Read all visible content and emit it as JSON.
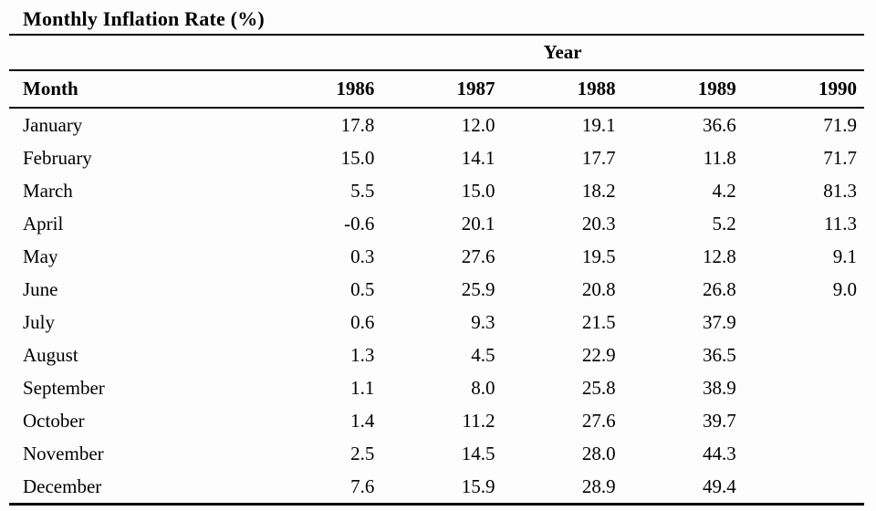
{
  "table": {
    "title": "Monthly Inflation Rate (%)",
    "group_header": "Year",
    "month_header": "Month",
    "years": [
      "1986",
      "1987",
      "1988",
      "1989",
      "1990"
    ],
    "rows": [
      {
        "month": "January",
        "values": [
          "17.8",
          "12.0",
          "19.1",
          "36.6",
          "71.9"
        ]
      },
      {
        "month": "February",
        "values": [
          "15.0",
          "14.1",
          "17.7",
          "11.8",
          "71.7"
        ]
      },
      {
        "month": "March",
        "values": [
          "5.5",
          "15.0",
          "18.2",
          "4.2",
          "81.3"
        ]
      },
      {
        "month": "April",
        "values": [
          "-0.6",
          "20.1",
          "20.3",
          "5.2",
          "11.3"
        ]
      },
      {
        "month": "May",
        "values": [
          "0.3",
          "27.6",
          "19.5",
          "12.8",
          "9.1"
        ]
      },
      {
        "month": "June",
        "values": [
          "0.5",
          "25.9",
          "20.8",
          "26.8",
          "9.0"
        ]
      },
      {
        "month": "July",
        "values": [
          "0.6",
          "9.3",
          "21.5",
          "37.9",
          ""
        ]
      },
      {
        "month": "August",
        "values": [
          "1.3",
          "4.5",
          "22.9",
          "36.5",
          ""
        ]
      },
      {
        "month": "September",
        "values": [
          "1.1",
          "8.0",
          "25.8",
          "38.9",
          ""
        ]
      },
      {
        "month": "October",
        "values": [
          "1.4",
          "11.2",
          "27.6",
          "39.7",
          ""
        ]
      },
      {
        "month": "November",
        "values": [
          "2.5",
          "14.5",
          "28.0",
          "44.3",
          ""
        ]
      },
      {
        "month": "December",
        "values": [
          "7.6",
          "15.9",
          "28.9",
          "49.4",
          ""
        ]
      }
    ]
  },
  "chart_data": {
    "type": "table",
    "title": "Monthly Inflation Rate (%)",
    "column_group_label": "Year",
    "row_label_header": "Month",
    "columns": [
      "1986",
      "1987",
      "1988",
      "1989",
      "1990"
    ],
    "row_labels": [
      "January",
      "February",
      "March",
      "April",
      "May",
      "June",
      "July",
      "August",
      "September",
      "October",
      "November",
      "December"
    ],
    "series": [
      {
        "name": "1986",
        "values": [
          17.8,
          15.0,
          5.5,
          -0.6,
          0.3,
          0.5,
          0.6,
          1.3,
          1.1,
          1.4,
          2.5,
          7.6
        ]
      },
      {
        "name": "1987",
        "values": [
          12.0,
          14.1,
          15.0,
          20.1,
          27.6,
          25.9,
          9.3,
          4.5,
          8.0,
          11.2,
          14.5,
          15.9
        ]
      },
      {
        "name": "1988",
        "values": [
          19.1,
          17.7,
          18.2,
          20.3,
          19.5,
          20.8,
          21.5,
          22.9,
          25.8,
          27.6,
          28.0,
          28.9
        ]
      },
      {
        "name": "1989",
        "values": [
          36.6,
          11.8,
          4.2,
          5.2,
          12.8,
          26.8,
          37.9,
          36.5,
          38.9,
          39.7,
          44.3,
          49.4
        ]
      },
      {
        "name": "1990",
        "values": [
          71.9,
          71.7,
          81.3,
          11.3,
          9.1,
          9.0,
          null,
          null,
          null,
          null,
          null,
          null
        ]
      }
    ]
  }
}
